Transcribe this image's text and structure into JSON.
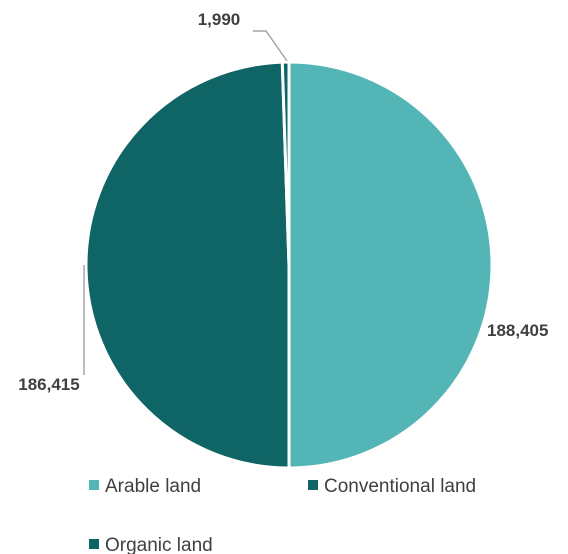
{
  "chart_data": {
    "type": "pie",
    "categories": [
      "Arable land",
      "Conventional land",
      "Organic land"
    ],
    "values": [
      188405,
      186415,
      1990
    ],
    "data_labels": [
      "188,405",
      "186,415",
      "1,990"
    ],
    "colors": [
      "#53b5b5",
      "#0f6466",
      "#0f6466"
    ],
    "legend_position": "bottom",
    "title": "",
    "start_angle": "12 o'clock",
    "direction": "clockwise"
  }
}
